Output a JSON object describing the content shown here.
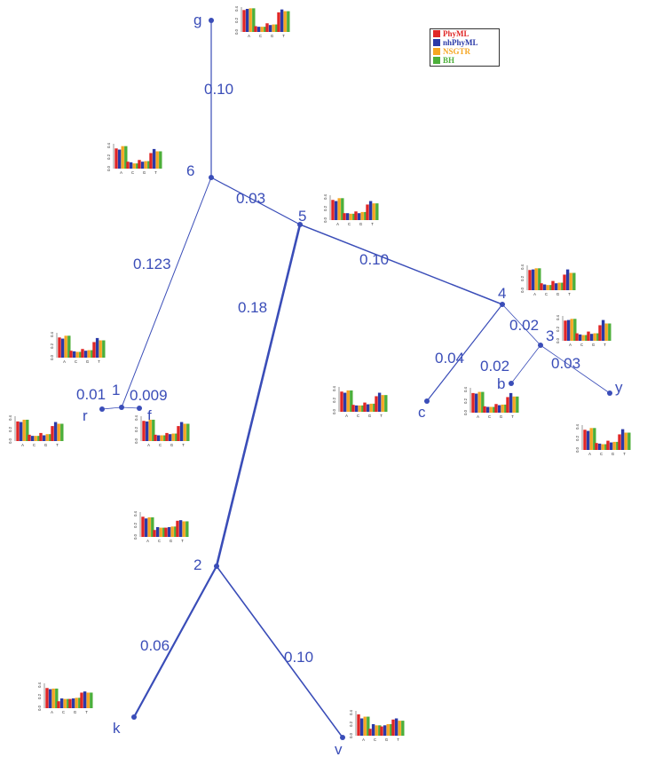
{
  "legend": [
    {
      "label": "PhyML",
      "color": "#e02626"
    },
    {
      "label": "nhPhyML",
      "color": "#2b3aa8"
    },
    {
      "label": "NSGTR",
      "color": "#f5a623"
    },
    {
      "label": "BH",
      "color": "#4caf3a"
    }
  ],
  "colors": {
    "tree": "#3a4db8",
    "label": "#3a4db8"
  },
  "nucleotides": [
    "A",
    "C",
    "G",
    "T"
  ],
  "axis_ticks": [
    "0.0",
    "0.2",
    "0.4"
  ],
  "nodes": [
    {
      "id": "g",
      "label": "g"
    },
    {
      "id": "6",
      "label": "6"
    },
    {
      "id": "5",
      "label": "5"
    },
    {
      "id": "4",
      "label": "4"
    },
    {
      "id": "3",
      "label": "3"
    },
    {
      "id": "1",
      "label": "1"
    },
    {
      "id": "2",
      "label": "2"
    },
    {
      "id": "r",
      "label": "r"
    },
    {
      "id": "f",
      "label": "f"
    },
    {
      "id": "c",
      "label": "c"
    },
    {
      "id": "b",
      "label": "b"
    },
    {
      "id": "y",
      "label": "y"
    },
    {
      "id": "k",
      "label": "k"
    },
    {
      "id": "v",
      "label": "v"
    }
  ],
  "edges": [
    {
      "from": "6",
      "to": "g",
      "length": "0.10"
    },
    {
      "from": "6",
      "to": "5",
      "length": "0.03"
    },
    {
      "from": "6",
      "to": "1",
      "length": "0.123"
    },
    {
      "from": "5",
      "to": "4",
      "length": "0.10"
    },
    {
      "from": "5",
      "to": "2",
      "length": "0.18"
    },
    {
      "from": "4",
      "to": "c",
      "length": "0.04"
    },
    {
      "from": "4",
      "to": "3",
      "length": "0.02"
    },
    {
      "from": "3",
      "to": "b",
      "length": "0.02"
    },
    {
      "from": "3",
      "to": "y",
      "length": "0.03"
    },
    {
      "from": "1",
      "to": "r",
      "length": "0.01"
    },
    {
      "from": "1",
      "to": "f",
      "length": "0.009"
    },
    {
      "from": "2",
      "to": "k",
      "length": "0.06"
    },
    {
      "from": "2",
      "to": "v",
      "length": "0.10"
    }
  ],
  "chart_data": [
    {
      "type": "bar",
      "node": "g",
      "categories": [
        "A",
        "C",
        "G",
        "T"
      ],
      "ylim": [
        0,
        0.4
      ],
      "series": [
        {
          "name": "PhyML",
          "values": [
            0.38,
            0.1,
            0.15,
            0.34
          ]
        },
        {
          "name": "nhPhyML",
          "values": [
            0.4,
            0.09,
            0.12,
            0.39
          ]
        },
        {
          "name": "NSGTR",
          "values": [
            0.41,
            0.09,
            0.13,
            0.36
          ]
        },
        {
          "name": "BH",
          "values": [
            0.41,
            0.09,
            0.13,
            0.36
          ]
        }
      ]
    },
    {
      "type": "bar",
      "node": "6",
      "categories": [
        "A",
        "C",
        "G",
        "T"
      ],
      "ylim": [
        0,
        0.4
      ],
      "series": [
        {
          "name": "PhyML",
          "values": [
            0.35,
            0.12,
            0.15,
            0.27
          ]
        },
        {
          "name": "nhPhyML",
          "values": [
            0.33,
            0.11,
            0.12,
            0.34
          ]
        },
        {
          "name": "NSGTR",
          "values": [
            0.39,
            0.09,
            0.13,
            0.3
          ]
        },
        {
          "name": "BH",
          "values": [
            0.39,
            0.09,
            0.13,
            0.3
          ]
        }
      ]
    },
    {
      "type": "bar",
      "node": "5",
      "categories": [
        "A",
        "C",
        "G",
        "T"
      ],
      "ylim": [
        0,
        0.4
      ],
      "series": [
        {
          "name": "PhyML",
          "values": [
            0.35,
            0.12,
            0.15,
            0.27
          ]
        },
        {
          "name": "nhPhyML",
          "values": [
            0.33,
            0.12,
            0.12,
            0.33
          ]
        },
        {
          "name": "NSGTR",
          "values": [
            0.38,
            0.11,
            0.14,
            0.29
          ]
        },
        {
          "name": "BH",
          "values": [
            0.38,
            0.11,
            0.14,
            0.29
          ]
        }
      ]
    },
    {
      "type": "bar",
      "node": "4",
      "categories": [
        "A",
        "C",
        "G",
        "T"
      ],
      "ylim": [
        0,
        0.4
      ],
      "series": [
        {
          "name": "PhyML",
          "values": [
            0.35,
            0.12,
            0.16,
            0.27
          ]
        },
        {
          "name": "nhPhyML",
          "values": [
            0.36,
            0.1,
            0.12,
            0.36
          ]
        },
        {
          "name": "NSGTR",
          "values": [
            0.38,
            0.09,
            0.13,
            0.3
          ]
        },
        {
          "name": "BH",
          "values": [
            0.38,
            0.09,
            0.13,
            0.3
          ]
        }
      ]
    },
    {
      "type": "bar",
      "node": "3",
      "categories": [
        "A",
        "C",
        "G",
        "T"
      ],
      "ylim": [
        0,
        0.4
      ],
      "series": [
        {
          "name": "PhyML",
          "values": [
            0.35,
            0.13,
            0.16,
            0.27
          ]
        },
        {
          "name": "nhPhyML",
          "values": [
            0.36,
            0.11,
            0.12,
            0.36
          ]
        },
        {
          "name": "NSGTR",
          "values": [
            0.38,
            0.1,
            0.13,
            0.3
          ]
        },
        {
          "name": "BH",
          "values": [
            0.38,
            0.1,
            0.13,
            0.3
          ]
        }
      ]
    },
    {
      "type": "bar",
      "node": "1",
      "categories": [
        "A",
        "C",
        "G",
        "T"
      ],
      "ylim": [
        0,
        0.4
      ],
      "series": [
        {
          "name": "PhyML",
          "values": [
            0.35,
            0.12,
            0.15,
            0.27
          ]
        },
        {
          "name": "nhPhyML",
          "values": [
            0.33,
            0.11,
            0.12,
            0.34
          ]
        },
        {
          "name": "NSGTR",
          "values": [
            0.38,
            0.1,
            0.13,
            0.3
          ]
        },
        {
          "name": "BH",
          "values": [
            0.38,
            0.1,
            0.13,
            0.3
          ]
        }
      ]
    },
    {
      "type": "bar",
      "node": "r",
      "categories": [
        "A",
        "C",
        "G",
        "T"
      ],
      "ylim": [
        0,
        0.4
      ],
      "series": [
        {
          "name": "PhyML",
          "values": [
            0.34,
            0.11,
            0.14,
            0.26
          ]
        },
        {
          "name": "nhPhyML",
          "values": [
            0.33,
            0.09,
            0.1,
            0.33
          ]
        },
        {
          "name": "NSGTR",
          "values": [
            0.37,
            0.09,
            0.12,
            0.3
          ]
        },
        {
          "name": "BH",
          "values": [
            0.37,
            0.09,
            0.12,
            0.3
          ]
        }
      ]
    },
    {
      "type": "bar",
      "node": "f",
      "categories": [
        "A",
        "C",
        "G",
        "T"
      ],
      "ylim": [
        0,
        0.4
      ],
      "series": [
        {
          "name": "PhyML",
          "values": [
            0.35,
            0.11,
            0.14,
            0.26
          ]
        },
        {
          "name": "nhPhyML",
          "values": [
            0.34,
            0.1,
            0.12,
            0.33
          ]
        },
        {
          "name": "NSGTR",
          "values": [
            0.37,
            0.1,
            0.13,
            0.3
          ]
        },
        {
          "name": "BH",
          "values": [
            0.37,
            0.1,
            0.13,
            0.3
          ]
        }
      ]
    },
    {
      "type": "bar",
      "node": "c",
      "categories": [
        "A",
        "C",
        "G",
        "T"
      ],
      "ylim": [
        0,
        0.4
      ],
      "series": [
        {
          "name": "PhyML",
          "values": [
            0.35,
            0.12,
            0.16,
            0.27
          ]
        },
        {
          "name": "nhPhyML",
          "values": [
            0.33,
            0.11,
            0.13,
            0.33
          ]
        },
        {
          "name": "NSGTR",
          "values": [
            0.37,
            0.11,
            0.14,
            0.29
          ]
        },
        {
          "name": "BH",
          "values": [
            0.37,
            0.11,
            0.14,
            0.29
          ]
        }
      ]
    },
    {
      "type": "bar",
      "node": "b",
      "categories": [
        "A",
        "C",
        "G",
        "T"
      ],
      "ylim": [
        0,
        0.4
      ],
      "series": [
        {
          "name": "PhyML",
          "values": [
            0.34,
            0.11,
            0.15,
            0.27
          ]
        },
        {
          "name": "nhPhyML",
          "values": [
            0.33,
            0.1,
            0.13,
            0.34
          ]
        },
        {
          "name": "NSGTR",
          "values": [
            0.36,
            0.1,
            0.14,
            0.28
          ]
        },
        {
          "name": "BH",
          "values": [
            0.36,
            0.1,
            0.14,
            0.28
          ]
        }
      ]
    },
    {
      "type": "bar",
      "node": "y",
      "categories": [
        "A",
        "C",
        "G",
        "T"
      ],
      "ylim": [
        0,
        0.4
      ],
      "series": [
        {
          "name": "PhyML",
          "values": [
            0.35,
            0.12,
            0.16,
            0.27
          ]
        },
        {
          "name": "nhPhyML",
          "values": [
            0.33,
            0.11,
            0.13,
            0.36
          ]
        },
        {
          "name": "NSGTR",
          "values": [
            0.38,
            0.1,
            0.14,
            0.3
          ]
        },
        {
          "name": "BH",
          "values": [
            0.38,
            0.1,
            0.14,
            0.3
          ]
        }
      ]
    },
    {
      "type": "bar",
      "node": "2",
      "categories": [
        "A",
        "C",
        "G",
        "T"
      ],
      "ylim": [
        0,
        0.4
      ],
      "series": [
        {
          "name": "PhyML",
          "values": [
            0.35,
            0.12,
            0.16,
            0.28
          ]
        },
        {
          "name": "nhPhyML",
          "values": [
            0.32,
            0.17,
            0.17,
            0.29
          ]
        },
        {
          "name": "NSGTR",
          "values": [
            0.34,
            0.16,
            0.18,
            0.27
          ]
        },
        {
          "name": "BH",
          "values": [
            0.34,
            0.16,
            0.18,
            0.27
          ]
        }
      ]
    },
    {
      "type": "bar",
      "node": "k",
      "categories": [
        "A",
        "C",
        "G",
        "T"
      ],
      "ylim": [
        0,
        0.4
      ],
      "series": [
        {
          "name": "PhyML",
          "values": [
            0.35,
            0.12,
            0.16,
            0.27
          ]
        },
        {
          "name": "nhPhyML",
          "values": [
            0.33,
            0.17,
            0.17,
            0.29
          ]
        },
        {
          "name": "NSGTR",
          "values": [
            0.34,
            0.16,
            0.18,
            0.27
          ]
        },
        {
          "name": "BH",
          "values": [
            0.34,
            0.16,
            0.18,
            0.27
          ]
        }
      ]
    },
    {
      "type": "bar",
      "node": "v",
      "categories": [
        "A",
        "C",
        "G",
        "T"
      ],
      "ylim": [
        0,
        0.4
      ],
      "series": [
        {
          "name": "PhyML",
          "values": [
            0.37,
            0.12,
            0.16,
            0.28
          ]
        },
        {
          "name": "nhPhyML",
          "values": [
            0.3,
            0.2,
            0.18,
            0.3
          ]
        },
        {
          "name": "NSGTR",
          "values": [
            0.33,
            0.18,
            0.2,
            0.26
          ]
        },
        {
          "name": "BH",
          "values": [
            0.33,
            0.18,
            0.2,
            0.26
          ]
        }
      ]
    }
  ]
}
